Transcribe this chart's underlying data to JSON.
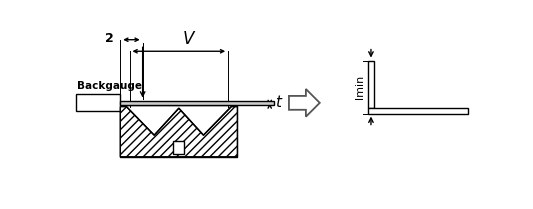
{
  "bg_color": "#ffffff",
  "line_color": "#000000",
  "label_2": "2",
  "label_V": "V",
  "label_t": "t",
  "label_backgauge": "Backgauge",
  "label_lmin": "lmin",
  "figsize": [
    5.33,
    2.09
  ],
  "dpi": 100
}
